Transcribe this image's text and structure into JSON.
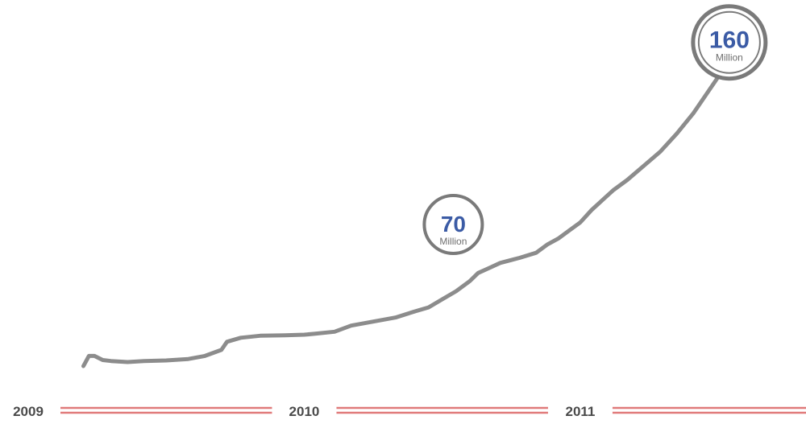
{
  "chart_data": {
    "type": "line",
    "title": "",
    "xlabel": "",
    "ylabel": "",
    "x_unit": "year",
    "xlim": [
      2009.0,
      2011.92
    ],
    "ylim": [
      0,
      175
    ],
    "grid": false,
    "x_ticks": [
      {
        "value": 2009.0,
        "label": "2009"
      },
      {
        "value": 2010.0,
        "label": "2010"
      },
      {
        "value": 2011.0,
        "label": "2011"
      }
    ],
    "series": [
      {
        "color": "#8c8c8c",
        "points": [
          [
            2009.2,
            0
          ],
          [
            2009.22,
            5
          ],
          [
            2009.24,
            5
          ],
          [
            2009.27,
            3
          ],
          [
            2009.3,
            2.5
          ],
          [
            2009.36,
            2
          ],
          [
            2009.42,
            2.5
          ],
          [
            2009.5,
            2.8
          ],
          [
            2009.58,
            3.5
          ],
          [
            2009.64,
            5
          ],
          [
            2009.7,
            8
          ],
          [
            2009.72,
            12
          ],
          [
            2009.77,
            14
          ],
          [
            2009.84,
            15
          ],
          [
            2009.93,
            15.2
          ],
          [
            2010.0,
            15.5
          ],
          [
            2010.04,
            16
          ],
          [
            2010.11,
            17
          ],
          [
            2010.17,
            20
          ],
          [
            2010.25,
            22
          ],
          [
            2010.33,
            24
          ],
          [
            2010.4,
            27
          ],
          [
            2010.45,
            29
          ],
          [
            2010.5,
            33
          ],
          [
            2010.55,
            37
          ],
          [
            2010.6,
            42
          ],
          [
            2010.63,
            46
          ],
          [
            2010.67,
            48.5
          ],
          [
            2010.71,
            51
          ],
          [
            2010.78,
            53.5
          ],
          [
            2010.84,
            56
          ],
          [
            2010.88,
            60
          ],
          [
            2010.92,
            63
          ],
          [
            2010.96,
            67
          ],
          [
            2011.0,
            71
          ],
          [
            2011.04,
            77
          ],
          [
            2011.08,
            82
          ],
          [
            2011.12,
            87
          ],
          [
            2011.17,
            92
          ],
          [
            2011.23,
            99
          ],
          [
            2011.29,
            106
          ],
          [
            2011.35,
            115
          ],
          [
            2011.41,
            125
          ],
          [
            2011.47,
            137
          ],
          [
            2011.52,
            147
          ]
        ]
      }
    ],
    "annotations": [
      {
        "x": 2010.54,
        "y": 70,
        "value": "70",
        "unit": "Million",
        "size": "small"
      },
      {
        "x": 2011.54,
        "y": 160,
        "value": "160",
        "unit": "Million",
        "size": "large"
      }
    ],
    "colors": {
      "line": "#8c8c8c",
      "circle_ring": "#7a7a7a",
      "value_text": "#3b5ba5",
      "unit_text": "#6e6e6e",
      "axis_band": "#e07a7a",
      "year_text": "#4a4a4a"
    }
  }
}
